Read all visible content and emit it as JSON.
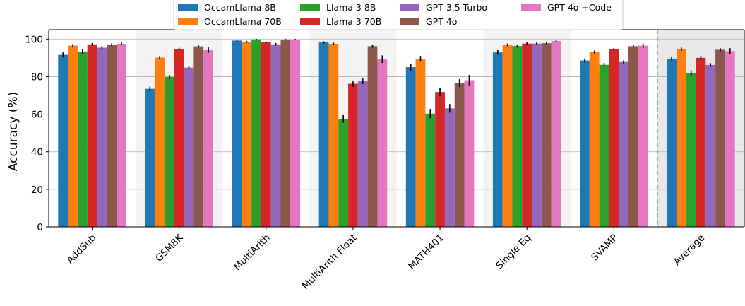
{
  "chart_data": {
    "type": "bar",
    "ylabel": "Accuracy (%)",
    "ylim": [
      0,
      105
    ],
    "yticks": [
      0,
      20,
      40,
      60,
      80,
      100
    ],
    "grid": true,
    "legend_position": "top-center",
    "categories": [
      "AddSub",
      "GSM8K",
      "MultiArith",
      "MultiArith Float",
      "MATH401",
      "Single Eq",
      "SVAMP",
      "Average"
    ],
    "series": [
      {
        "name": "OccamLlama 8B",
        "color": "#1f77b4",
        "values": [
          91.6,
          73.5,
          99.2,
          98.2,
          85.0,
          92.9,
          88.6,
          89.6
        ],
        "errors": [
          1.3,
          1.2,
          0.5,
          0.6,
          1.8,
          1.2,
          1.0,
          1.0
        ]
      },
      {
        "name": "OccamLlama 70B",
        "color": "#ff7f0e",
        "values": [
          96.5,
          90.1,
          98.5,
          97.5,
          89.5,
          96.9,
          93.1,
          94.6
        ],
        "errors": [
          0.8,
          0.8,
          0.5,
          0.6,
          1.5,
          0.7,
          0.8,
          0.9
        ]
      },
      {
        "name": "Llama 3 8B",
        "color": "#2ca02c",
        "values": [
          93.4,
          79.8,
          99.8,
          57.5,
          60.3,
          96.3,
          86.3,
          81.8
        ],
        "errors": [
          1.2,
          1.1,
          0.3,
          2.0,
          2.5,
          0.8,
          1.0,
          1.6
        ]
      },
      {
        "name": "Llama 3 70B",
        "color": "#d62728",
        "values": [
          97.2,
          94.8,
          98.2,
          76.2,
          71.8,
          97.6,
          94.6,
          90.0
        ],
        "errors": [
          0.7,
          0.6,
          0.5,
          1.6,
          2.2,
          0.6,
          0.7,
          1.1
        ]
      },
      {
        "name": "GPT 3.5 Turbo",
        "color": "#9467bd",
        "values": [
          95.4,
          84.8,
          97.2,
          77.5,
          63.1,
          97.6,
          87.8,
          86.2
        ],
        "errors": [
          0.9,
          0.9,
          0.7,
          1.5,
          2.3,
          0.6,
          0.9,
          1.0
        ]
      },
      {
        "name": "GPT 4o",
        "color": "#8c564b",
        "values": [
          97.0,
          96.1,
          99.7,
          96.2,
          76.6,
          97.8,
          96.2,
          94.3
        ],
        "errors": [
          0.7,
          0.5,
          0.3,
          0.8,
          2.0,
          0.5,
          0.6,
          0.8
        ]
      },
      {
        "name": "GPT 4o +Code",
        "color": "#e377c2",
        "values": [
          97.5,
          94.1,
          99.7,
          89.3,
          78.1,
          99.0,
          96.5,
          93.6
        ],
        "errors": [
          0.8,
          1.5,
          0.3,
          2.0,
          2.8,
          0.6,
          1.2,
          1.5
        ]
      }
    ]
  }
}
